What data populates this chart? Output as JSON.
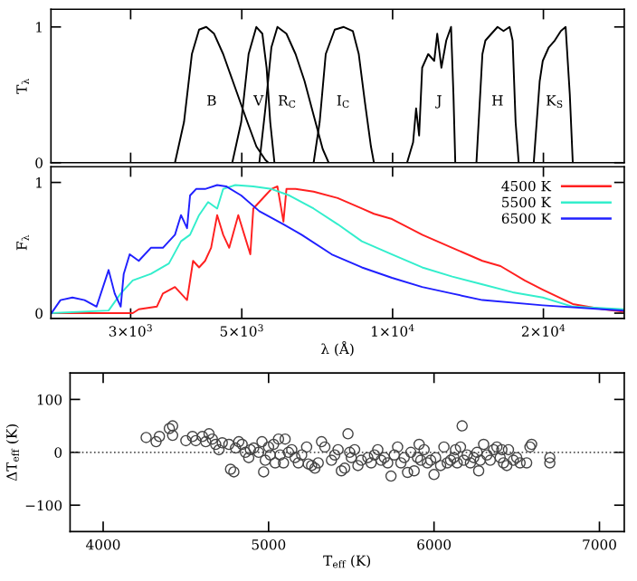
{
  "chart_data": [
    {
      "type": "line",
      "ylabel": "T$_{λ}$",
      "log": "x",
      "xlim": [
        2080,
        29000
      ],
      "ylim": [
        0,
        1.13
      ],
      "yticks": [
        0,
        1
      ],
      "xticks": [
        3000,
        5000,
        10000,
        20000
      ],
      "tick_labels": "y",
      "grid": false,
      "legend": false,
      "marker": "none",
      "line_style": "solid",
      "series": [
        {
          "name": "B",
          "color": "#000000",
          "x": [
            3678,
            3834,
            3975,
            4109,
            4247,
            4403,
            4590,
            4852,
            5129,
            5346,
            5573,
            5651
          ],
          "values": [
            0,
            0.3,
            0.8,
            0.98,
            1.0,
            0.95,
            0.8,
            0.55,
            0.3,
            0.12,
            0.02,
            0
          ]
        },
        {
          "name": "V",
          "color": "#000000",
          "x": [
            4786,
            4987,
            5159,
            5346,
            5496,
            5604,
            5698,
            5810
          ],
          "values": [
            0,
            0.3,
            0.8,
            1.0,
            0.95,
            0.7,
            0.3,
            0
          ]
        },
        {
          "name": "R$_{C}$",
          "color": "#000000",
          "x": [
            5420,
            5573,
            5729,
            5890,
            6139,
            6402,
            6673,
            6956,
            7253,
            7454
          ],
          "values": [
            0,
            0.4,
            0.85,
            1.0,
            0.95,
            0.8,
            0.6,
            0.35,
            0.1,
            0
          ]
        },
        {
          "name": "I$_{C}$",
          "color": "#000000",
          "x": [
            6956,
            7152,
            7354,
            7665,
            7990,
            8329,
            8560,
            8802,
            9052,
            9178
          ],
          "values": [
            0,
            0.3,
            0.8,
            0.98,
            1.0,
            0.97,
            0.8,
            0.45,
            0.12,
            0
          ]
        },
        {
          "name": "J",
          "color": "#000000",
          "x": [
            10688,
            10988,
            11141,
            11296,
            11456,
            11778,
            12108,
            12277,
            12515,
            12797,
            13082,
            13227,
            13338
          ],
          "values": [
            0,
            0.15,
            0.4,
            0.2,
            0.7,
            0.8,
            0.75,
            0.95,
            0.7,
            0.9,
            1.0,
            0.5,
            0
          ]
        },
        {
          "name": "H",
          "color": "#000000",
          "x": [
            14700,
            15110,
            15320,
            15750,
            16200,
            16650,
            17120,
            17360,
            17600,
            17850
          ],
          "values": [
            0,
            0.8,
            0.9,
            0.95,
            1.0,
            0.97,
            1.0,
            0.9,
            0.3,
            0
          ]
        },
        {
          "name": "K$_{S}$",
          "color": "#000000",
          "x": [
            19130,
            19660,
            19940,
            20500,
            21070,
            21670,
            22150,
            22580,
            22890
          ],
          "values": [
            0,
            0.6,
            0.75,
            0.85,
            0.9,
            0.97,
            1.0,
            0.5,
            0
          ]
        }
      ]
    },
    {
      "type": "line",
      "ylabel": "F$_{λ}$",
      "xlabel": "λ (Å)",
      "log": "x",
      "xlim": [
        2080,
        29000
      ],
      "ylim": [
        -0.04,
        1.12
      ],
      "yticks": [
        0,
        1
      ],
      "xticks": [
        {
          "value": 3000,
          "label": "3×10$^{3}$"
        },
        {
          "value": 5000,
          "label": "5×10$^{3}$"
        },
        {
          "value": 10000,
          "label": "1×10$^{4}$"
        },
        {
          "value": 20000,
          "label": "2×10$^{4}$"
        }
      ],
      "grid": false,
      "legend": "top right",
      "marker": "none",
      "line_style": "solid",
      "series": [
        {
          "name": "4500 K",
          "color": "#ff2020",
          "x": [
            2084,
            3029,
            3114,
            3384,
            3479,
            3678,
            3888,
            3997,
            4109,
            4224,
            4342,
            4465,
            4590,
            4719,
            4920,
            5058,
            5200,
            5272,
            5420,
            5573,
            5729,
            5890,
            6055,
            6139,
            6402,
            6956,
            7771,
            8682,
            9178,
            9972,
            11456,
            13154,
            15110,
            16420,
            18350,
            19940,
            22890,
            26300,
            28980
          ],
          "values": [
            0,
            0,
            0.03,
            0.05,
            0.15,
            0.2,
            0.1,
            0.4,
            0.35,
            0.4,
            0.5,
            0.75,
            0.6,
            0.5,
            0.75,
            0.6,
            0.45,
            0.8,
            0.85,
            0.9,
            0.95,
            0.97,
            0.7,
            0.95,
            0.95,
            0.93,
            0.88,
            0.8,
            0.76,
            0.72,
            0.6,
            0.5,
            0.4,
            0.36,
            0.25,
            0.18,
            0.07,
            0.03,
            0.01
          ]
        },
        {
          "name": "5500 K",
          "color": "#33eecc",
          "x": [
            2084,
            2711,
            2866,
            3029,
            3292,
            3577,
            3781,
            3942,
            4109,
            4283,
            4465,
            4590,
            4852,
            5272,
            5729,
            6225,
            6956,
            7771,
            8682,
            9972,
            11456,
            13154,
            15110,
            17360,
            19940,
            22890,
            28980
          ],
          "values": [
            0,
            0.02,
            0.15,
            0.25,
            0.3,
            0.38,
            0.55,
            0.6,
            0.75,
            0.85,
            0.8,
            0.95,
            0.98,
            0.97,
            0.95,
            0.9,
            0.8,
            0.68,
            0.55,
            0.45,
            0.35,
            0.28,
            0.22,
            0.16,
            0.12,
            0.05,
            0.03
          ]
        },
        {
          "name": "6500 K",
          "color": "#2020ff",
          "x": [
            2084,
            2173,
            2296,
            2427,
            2565,
            2711,
            2788,
            2866,
            2906,
            2987,
            3114,
            3292,
            3479,
            3678,
            3781,
            3888,
            3942,
            4053,
            4224,
            4465,
            4654,
            4987,
            5420,
            6055,
            6581,
            7558,
            8682,
            9972,
            11456,
            13154,
            15110,
            19940,
            26300,
            28980
          ],
          "values": [
            0,
            0.1,
            0.12,
            0.1,
            0.05,
            0.33,
            0.15,
            0.05,
            0.3,
            0.45,
            0.4,
            0.5,
            0.5,
            0.6,
            0.75,
            0.65,
            0.9,
            0.95,
            0.95,
            0.98,
            0.97,
            0.9,
            0.78,
            0.68,
            0.6,
            0.45,
            0.35,
            0.27,
            0.2,
            0.15,
            0.1,
            0.06,
            0.03,
            0.02
          ]
        }
      ]
    },
    {
      "type": "scatter",
      "xlabel": "T$_{eff}$ (K)",
      "ylabel": "ΔT$_{eff}$ (K)",
      "xlim": [
        3800,
        7150
      ],
      "ylim": [
        -150,
        150
      ],
      "xticks": [
        4000,
        5000,
        6000,
        7000
      ],
      "yticks": [
        {
          "value": -100,
          "label": "−100"
        },
        0,
        100
      ],
      "grid": false,
      "legend": false,
      "marker": "circle",
      "ref_lines": [
        {
          "axis": "y",
          "value": 0,
          "color": "#555555",
          "line_style": "dotted"
        }
      ],
      "series": [
        {
          "color": "#444444",
          "x": [
            4260,
            4320,
            4340,
            4400,
            4420,
            4420,
            4500,
            4540,
            4560,
            4600,
            4620,
            4640,
            4660,
            4680,
            4700,
            4720,
            4760,
            4770,
            4790,
            4800,
            4820,
            4840,
            4860,
            4880,
            4890,
            4910,
            4940,
            4960,
            4970,
            4980,
            5000,
            5010,
            5030,
            5040,
            5060,
            5070,
            5090,
            5100,
            5120,
            5140,
            5160,
            5180,
            5200,
            5230,
            5240,
            5260,
            5280,
            5300,
            5320,
            5340,
            5380,
            5400,
            5420,
            5440,
            5460,
            5480,
            5490,
            5500,
            5520,
            5540,
            5560,
            5600,
            5620,
            5640,
            5660,
            5680,
            5700,
            5720,
            5740,
            5760,
            5780,
            5800,
            5820,
            5840,
            5860,
            5880,
            5900,
            5910,
            5920,
            5940,
            5960,
            5980,
            6000,
            6010,
            6040,
            6060,
            6080,
            6100,
            6120,
            6130,
            6140,
            6160,
            6170,
            6180,
            6200,
            6220,
            6240,
            6260,
            6270,
            6280,
            6300,
            6320,
            6340,
            6360,
            6380,
            6400,
            6410,
            6420,
            6440,
            6450,
            6480,
            6500,
            6520,
            6560,
            6580,
            6590,
            6700,
            6700
          ],
          "values": [
            28,
            20,
            30,
            45,
            50,
            32,
            22,
            30,
            22,
            30,
            20,
            35,
            25,
            15,
            5,
            18,
            15,
            -32,
            -37,
            8,
            20,
            15,
            0,
            -10,
            5,
            8,
            0,
            20,
            -37,
            -15,
            10,
            -5,
            15,
            -20,
            25,
            -5,
            -20,
            25,
            0,
            5,
            -10,
            -20,
            -5,
            10,
            -22,
            -25,
            -30,
            -20,
            20,
            10,
            -15,
            -5,
            5,
            -35,
            -30,
            35,
            0,
            -10,
            5,
            -25,
            -15,
            -10,
            -20,
            -5,
            5,
            -15,
            -10,
            -20,
            -45,
            -5,
            10,
            -20,
            -10,
            -38,
            0,
            -35,
            -10,
            15,
            -15,
            5,
            -20,
            -15,
            -42,
            -10,
            -25,
            10,
            -20,
            -15,
            -10,
            5,
            -20,
            10,
            50,
            -15,
            -5,
            -20,
            -10,
            0,
            -35,
            -15,
            15,
            -5,
            -15,
            5,
            10,
            -10,
            5,
            -20,
            -25,
            5,
            -15,
            -10,
            -20,
            -20,
            10,
            15,
            -10,
            -20
          ]
        }
      ]
    }
  ]
}
